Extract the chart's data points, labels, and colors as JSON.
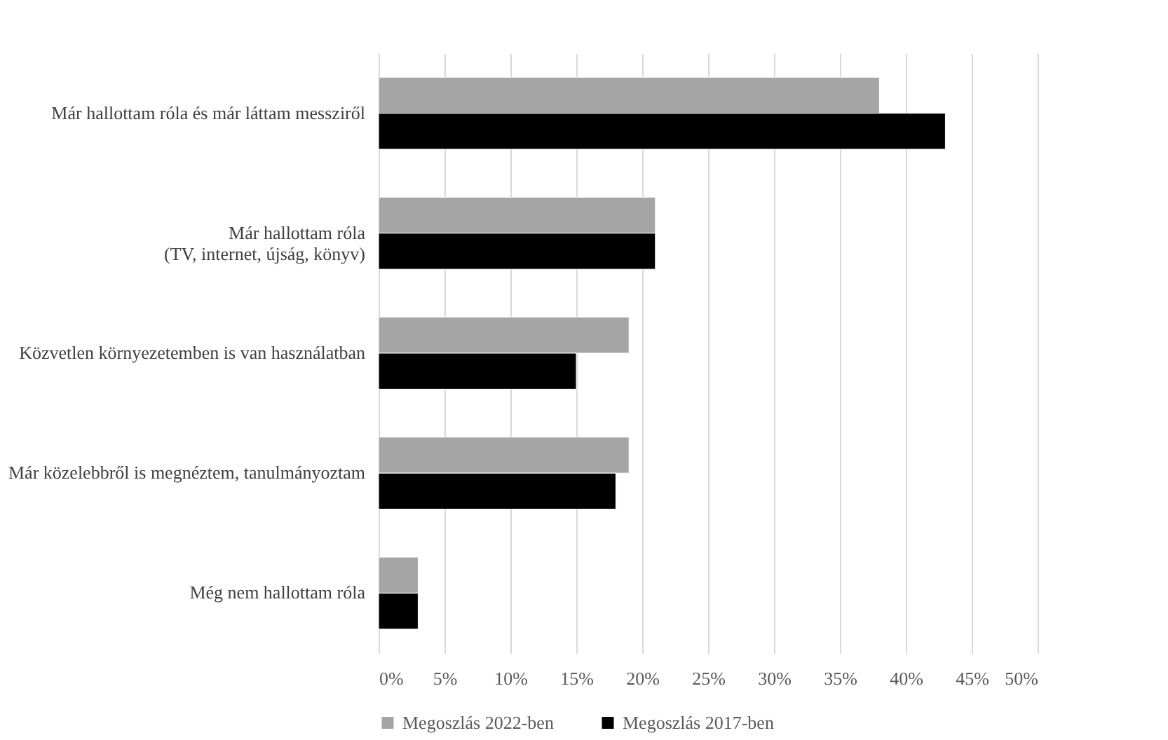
{
  "chart_data": {
    "type": "bar",
    "orientation": "horizontal",
    "categories": [
      "Már hallottam róla és már láttam messziről",
      "Már hallottam róla\n(TV, internet, újság, könyv)",
      "Közvetlen környezetemben is van használatban",
      "Már közelebbről is megnéztem, tanulmányoztam",
      "Még nem hallottam róla"
    ],
    "series": [
      {
        "name": "Megoszlás 2022-ben",
        "color": "#a5a5a5",
        "values": [
          38,
          21,
          19,
          19,
          3
        ]
      },
      {
        "name": "Megoszlás 2017-ben",
        "color": "#000000",
        "values": [
          43,
          21,
          15,
          18,
          3
        ]
      }
    ],
    "xlim": [
      0,
      50
    ],
    "xticks": [
      {
        "value": 0,
        "label": "0%"
      },
      {
        "value": 5,
        "label": "5%"
      },
      {
        "value": 10,
        "label": "10%"
      },
      {
        "value": 15,
        "label": "15%"
      },
      {
        "value": 20,
        "label": "20%"
      },
      {
        "value": 25,
        "label": "25%"
      },
      {
        "value": 30,
        "label": "30%"
      },
      {
        "value": 35,
        "label": "35%"
      },
      {
        "value": 40,
        "label": "40%"
      },
      {
        "value": 45,
        "label": "45%"
      },
      {
        "value": 50,
        "label": "50%"
      }
    ],
    "grid": "x",
    "legend": "bottom"
  }
}
